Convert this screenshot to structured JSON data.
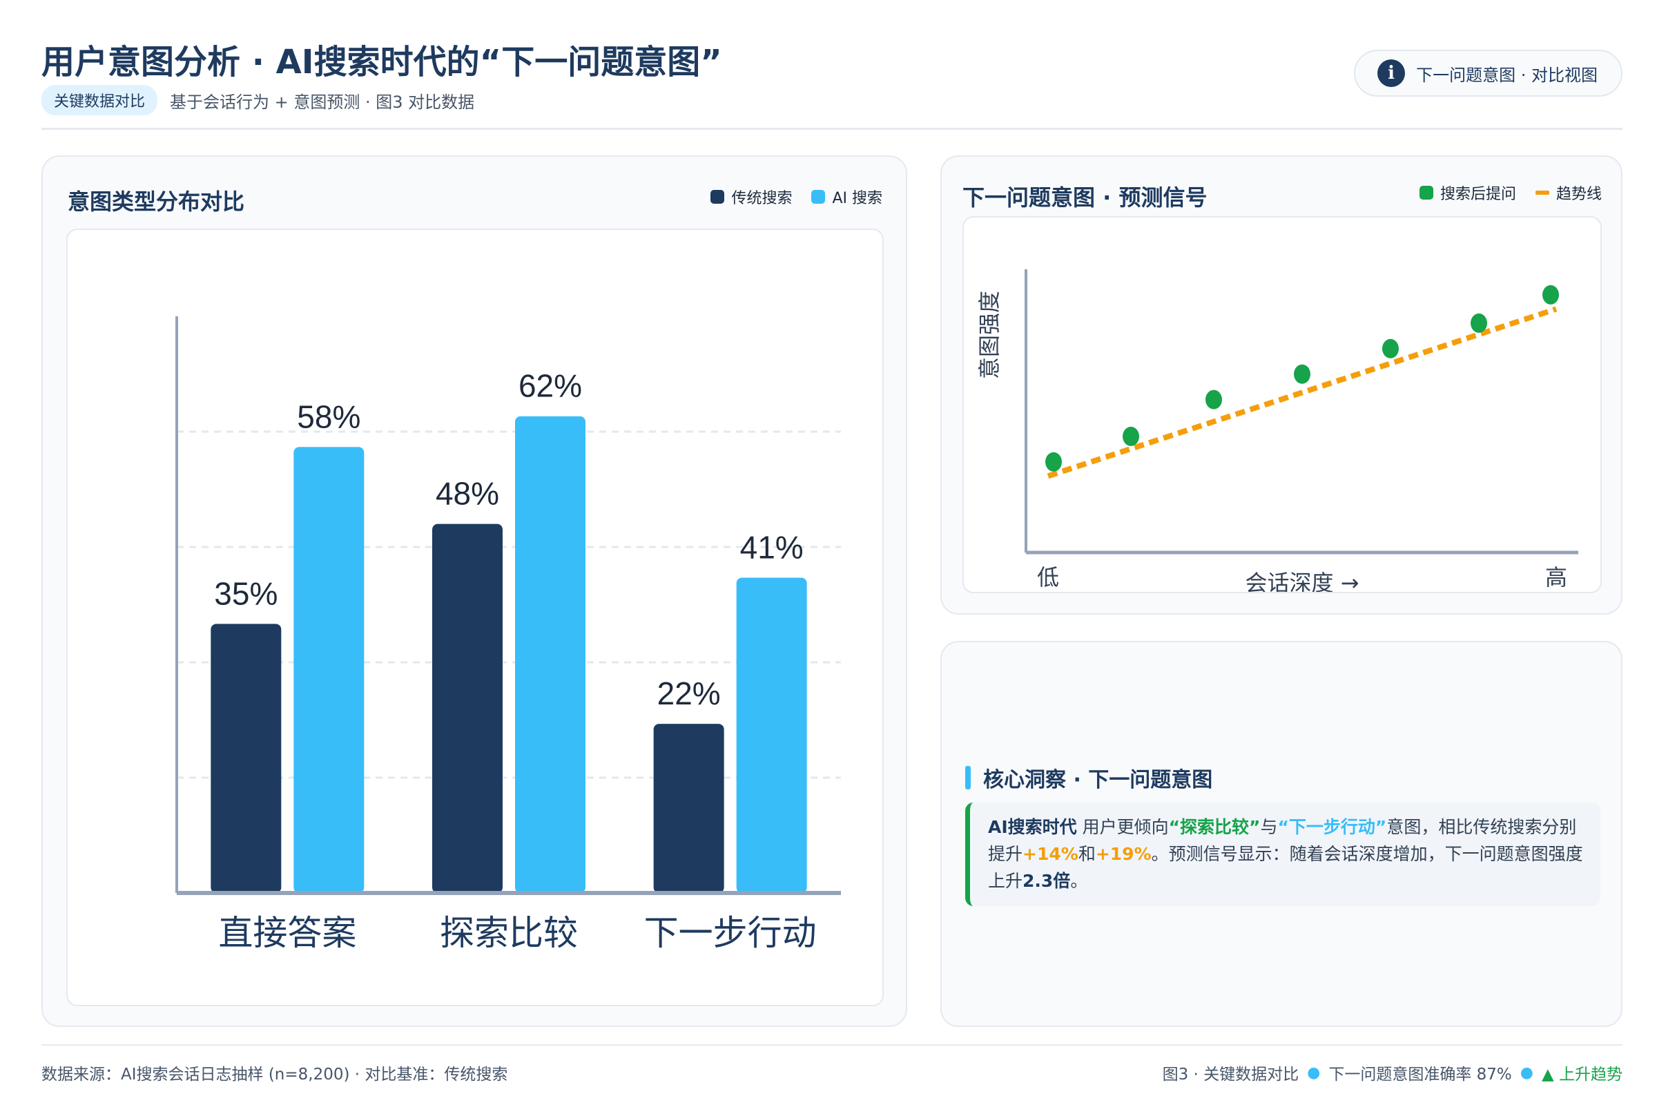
{
  "header": {
    "title": "用户意图分析 · AI搜索时代的“下一问题意图”",
    "tag": "关键数据对比",
    "subtitle": "基于会话行为 + 意图预测  ·  图3 对比数据",
    "pill_icon": "info-icon",
    "pill_text": "下一问题意图 · 对比视图"
  },
  "bar_card": {
    "title": "意图类型分布对比",
    "legend": [
      "传统搜索",
      "AI 搜索"
    ]
  },
  "scatter_card": {
    "title": "下一问题意图 · 预测信号",
    "legend": [
      "搜索后提问",
      "趋势线"
    ]
  },
  "insight": {
    "title": "核心洞察 · 下一问题意图",
    "lead": "AI搜索时代",
    "t1": " 用户更倾向",
    "h1": "“探索比较”",
    "t2": "与",
    "h2": "“下一步行动”",
    "t3": "意图，相比传统搜索分别提升",
    "p1": "+14%",
    "t4": "和",
    "p2": "+19%",
    "t5": "。预测信号显示：随着会话深度增加，下一问题意图强度上升",
    "mult": "2.3倍",
    "t6": "。"
  },
  "footer": {
    "left": "数据来源：AI搜索会话日志抽样 (n=8,200) · 对比基准：传统搜索",
    "r1": "图3 · 关键数据对比",
    "r2": "下一问题意图准确率 87%",
    "r3": "▲ 上升趋势"
  },
  "colors": {
    "traditional": "#1e3a5f",
    "ai": "#38bdf8",
    "points": "#16a34a",
    "trend": "#f59e0b",
    "axis": "#94a3b8"
  },
  "chart_data": [
    {
      "type": "bar",
      "title": "意图类型分布对比",
      "categories": [
        "直接答案",
        "探索比较",
        "下一步行动"
      ],
      "series": [
        {
          "name": "传统搜索",
          "values": [
            35,
            48,
            22
          ]
        },
        {
          "name": "AI 搜索",
          "values": [
            58,
            62,
            41
          ]
        }
      ],
      "value_labels": [
        [
          "35%",
          "48%",
          "22%"
        ],
        [
          "58%",
          "62%",
          "41%"
        ]
      ],
      "ylim": [
        0,
        75
      ],
      "grid": true,
      "legend": "top-right"
    },
    {
      "type": "scatter",
      "title": "下一问题意图 · 预测信号",
      "xlabel": "会话深度 →",
      "ylabel": "意图强度",
      "x_ticks": [
        "低",
        "高"
      ],
      "xlim": [
        0,
        10
      ],
      "ylim": [
        0,
        10
      ],
      "series": [
        {
          "name": "搜索后提问",
          "x": [
            0.5,
            1.9,
            3.4,
            5.0,
            6.6,
            8.2,
            9.5
          ],
          "y": [
            3.2,
            4.1,
            5.4,
            6.3,
            7.2,
            8.1,
            9.1
          ]
        },
        {
          "name": "趋势线",
          "x": [
            0.4,
            9.6
          ],
          "y": [
            2.7,
            8.6
          ]
        }
      ],
      "legend": "top-right"
    }
  ]
}
